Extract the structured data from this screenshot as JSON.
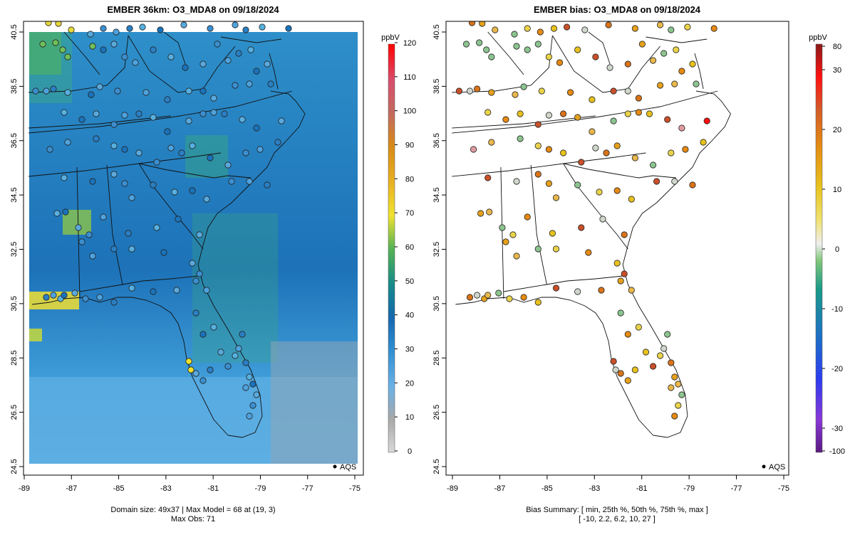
{
  "left_panel": {
    "title": "EMBER 36km: O3_MDA8 on 09/18/2024",
    "colorbar": {
      "unit": "ppbV",
      "ticks": [
        0,
        10,
        20,
        30,
        40,
        50,
        60,
        70,
        80,
        90,
        100,
        110,
        120
      ]
    },
    "footer_line1": "Domain size: 49x37 | Max Model = 68 at (19, 3)",
    "footer_line2": "Max Obs: 71",
    "legend_label": "AQS",
    "colors": {
      "low": "#cccccc",
      "mid_low": "#4ea3de",
      "mid": "#1670b5",
      "mid_high": "#3aa87e",
      "high": "#f3e12b",
      "max": "#ff0000"
    }
  },
  "right_panel": {
    "title": "EMBER bias: O3_MDA8 on 09/18/2024",
    "colorbar": {
      "unit": "ppbV",
      "ticks": [
        80,
        30,
        20,
        10,
        0,
        -10,
        -20,
        -30,
        -100
      ]
    },
    "footer_line1": "Bias Summary: [ min, 25th %, 50th %, 75th %, max ]",
    "footer_line2": "[ -10,   2.2,   6.2,   10,   27 ]",
    "legend_label": "AQS",
    "colors": {
      "neg": "#2ca06a",
      "zero": "#e8e8e8",
      "pos_low": "#e9c81f",
      "pos_mid": "#e58a12",
      "pos_high": "#c8502a",
      "max": "#ff0000"
    }
  },
  "axes": {
    "x_ticks": [
      "-89",
      "-87",
      "-85",
      "-83",
      "-81",
      "-79",
      "-77",
      "-75"
    ],
    "y_ticks": [
      "40.5",
      "38.5",
      "36.5",
      "34.5",
      "32.5",
      "30.5",
      "28.5",
      "26.5",
      "24.5"
    ],
    "xlim": [
      -89.2,
      -74.8
    ],
    "ylim": [
      24.3,
      40.8
    ]
  }
}
